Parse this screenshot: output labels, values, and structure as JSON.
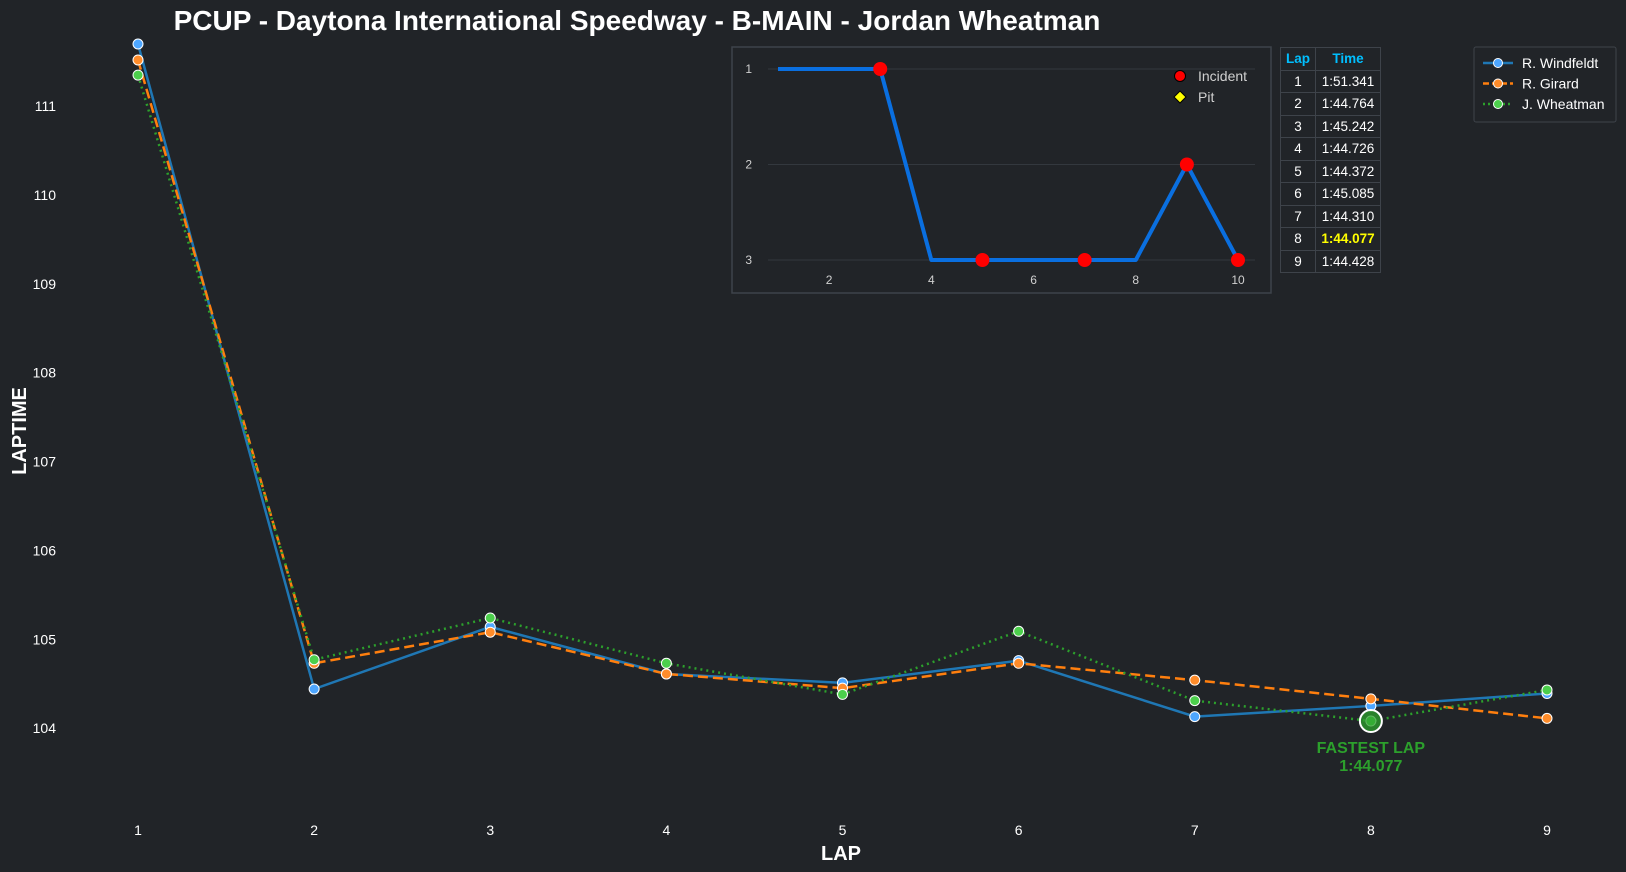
{
  "title": "PCUP - Daytona International Speedway - B-MAIN - Jordan Wheatman",
  "chart_data": [
    {
      "type": "line",
      "xlabel": "LAP",
      "ylabel": "LAPTIME",
      "x": [
        1,
        2,
        3,
        4,
        5,
        6,
        7,
        8,
        9
      ],
      "xticks": [
        "1",
        "2",
        "3",
        "4",
        "5",
        "6",
        "7",
        "8",
        "9"
      ],
      "yticks": [
        "104",
        "105",
        "106",
        "107",
        "108",
        "109",
        "110",
        "111"
      ],
      "ylim": [
        103.0,
        111.7
      ],
      "grid": false,
      "legend_position": "top-right",
      "series": [
        {
          "name": "R. Windfeldt",
          "color": "#1f77b4",
          "marker_color": "#4da6ff",
          "style": "solid",
          "values": [
            111.7,
            104.44,
            105.14,
            104.61,
            104.51,
            104.76,
            104.13,
            104.25,
            104.39
          ]
        },
        {
          "name": "R. Girard",
          "color": "#ff7f0e",
          "marker_color": "#ff8c2a",
          "style": "dashed",
          "values": [
            111.52,
            104.73,
            105.08,
            104.61,
            104.45,
            104.73,
            104.54,
            104.33,
            104.11
          ]
        },
        {
          "name": "J. Wheatman",
          "color": "#2ca02c",
          "marker_color": "#4ccf4c",
          "style": "dotted",
          "values": [
            111.35,
            104.77,
            105.24,
            104.73,
            104.38,
            105.09,
            104.31,
            104.08,
            104.43
          ]
        }
      ],
      "annotation": {
        "text": "FASTEST LAP",
        "value_text": "1:44.077",
        "x": 8,
        "y": 104.08,
        "color": "#2ca02c"
      }
    },
    {
      "type": "line",
      "x": [
        1,
        2,
        3,
        4,
        5,
        6,
        7,
        8,
        9,
        10
      ],
      "values": [
        1,
        1,
        1,
        3,
        3,
        3,
        3,
        3,
        2,
        3
      ],
      "xticks": [
        "2",
        "4",
        "6",
        "8",
        "10"
      ],
      "yticks": [
        "1",
        "2",
        "3"
      ],
      "xlim": [
        0.5,
        10.6
      ],
      "ylim": [
        1,
        3
      ],
      "y_inverted": true,
      "color": "#0a6fe0",
      "incident_laps": [
        3,
        5,
        7,
        9,
        10
      ],
      "pit_laps": [],
      "legend": [
        {
          "label": "Incident",
          "color": "#ff0000",
          "marker": "circle"
        },
        {
          "label": "Pit",
          "color": "#ffff00",
          "marker": "diamond"
        }
      ]
    }
  ],
  "lap_table": {
    "headers": [
      "Lap",
      "Time"
    ],
    "header_color": "#00bfff",
    "best_color": "#ffff00",
    "best_lap": 8,
    "rows": [
      [
        "1",
        "1:51.341"
      ],
      [
        "2",
        "1:44.764"
      ],
      [
        "3",
        "1:45.242"
      ],
      [
        "4",
        "1:44.726"
      ],
      [
        "5",
        "1:44.372"
      ],
      [
        "6",
        "1:45.085"
      ],
      [
        "7",
        "1:44.310"
      ],
      [
        "8",
        "1:44.077"
      ],
      [
        "9",
        "1:44.428"
      ]
    ]
  },
  "colors": {
    "background": "#212428",
    "text": "#ffffff",
    "inset_border": "#3e434a"
  }
}
